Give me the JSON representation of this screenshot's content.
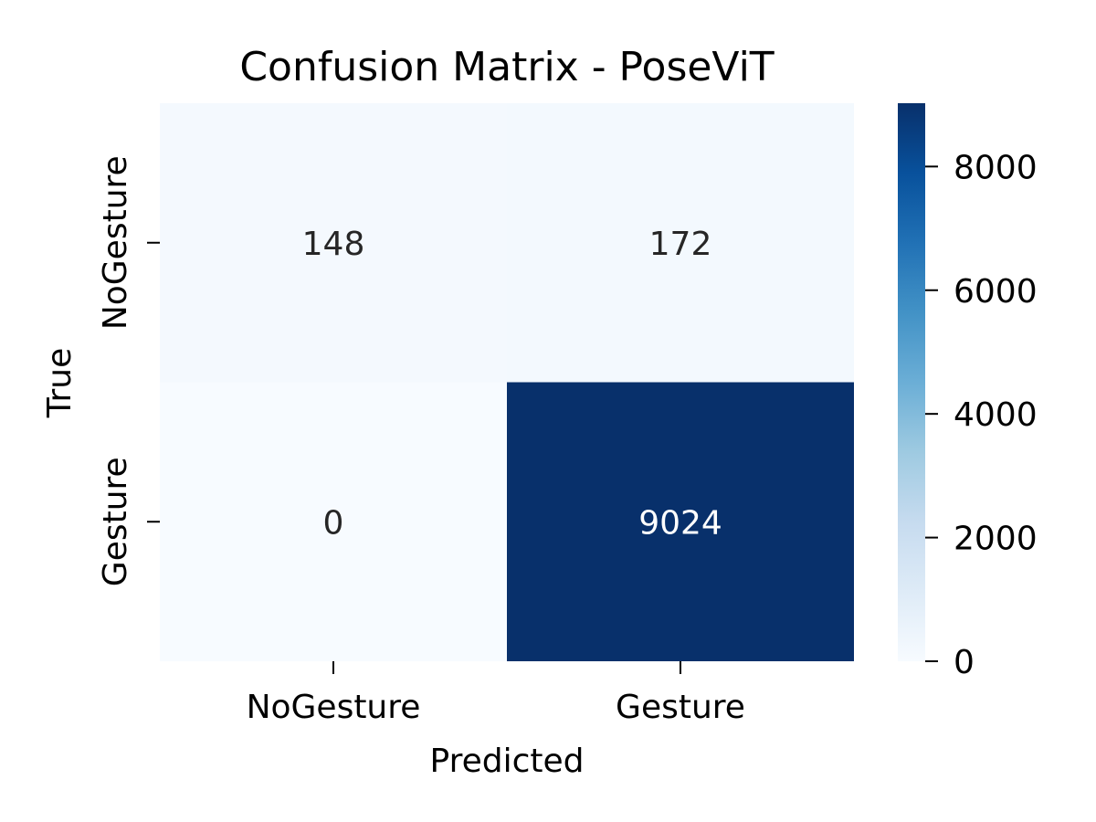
{
  "chart_data": {
    "type": "heatmap",
    "title": "Confusion Matrix - PoseViT",
    "xlabel": "Predicted",
    "ylabel": "True",
    "x_categories": [
      "NoGesture",
      "Gesture"
    ],
    "y_categories": [
      "NoGesture",
      "Gesture"
    ],
    "values": [
      [
        148,
        172
      ],
      [
        0,
        9024
      ]
    ],
    "colormap": "Blues",
    "colorbar": {
      "range": [
        0,
        9024
      ],
      "ticks": [
        0,
        2000,
        4000,
        6000,
        8000
      ],
      "tick_labels": [
        "0",
        "2000",
        "4000",
        "6000",
        "8000"
      ]
    },
    "colors": {
      "low": "#f7fbff",
      "high": "#08306b",
      "annotation_dark": "#262626",
      "annotation_light": "#ffffff"
    },
    "grid": false
  }
}
